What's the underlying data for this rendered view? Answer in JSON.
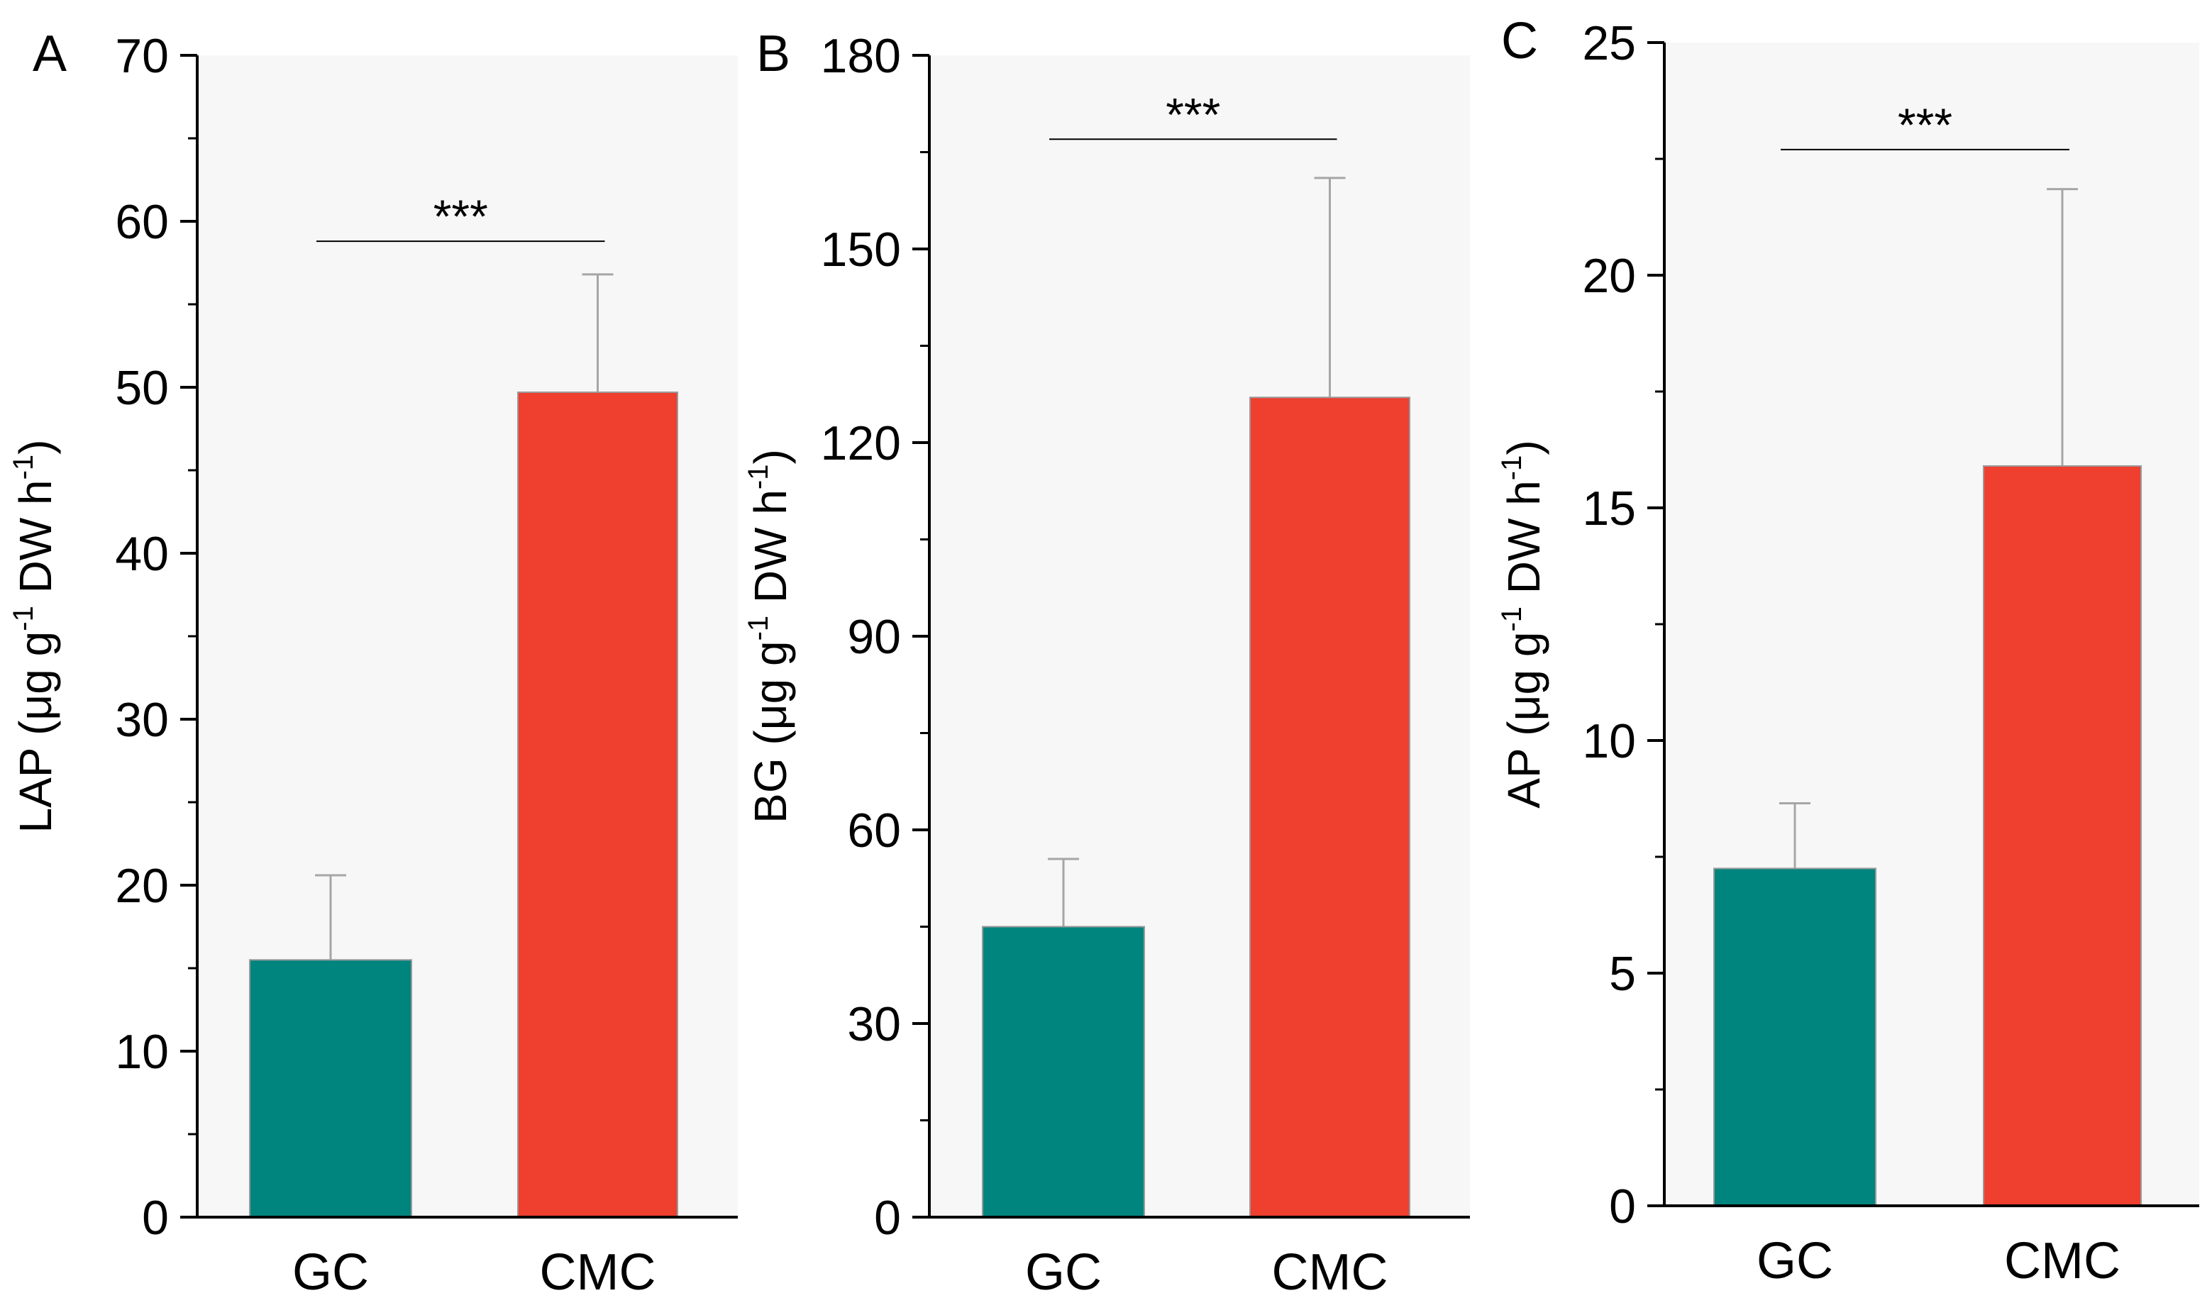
{
  "colors": {
    "plot_background": "#f7f7f7",
    "GC": "#00847e",
    "CMC": "#ee3f2f",
    "error_bar": "#a6a6a6"
  },
  "chart_data": [
    {
      "type": "bar",
      "panel_label": "A",
      "categories": [
        "GC",
        "CMC"
      ],
      "values": [
        15.5,
        49.7
      ],
      "error_upper": [
        20.6,
        56.8
      ],
      "ylabel": {
        "prefix": "LAP (μg g",
        "sup1": "-1",
        "middle": " DW h",
        "sup2": "-1",
        "suffix": ")"
      },
      "ylim": [
        0,
        70
      ],
      "yticks": [
        0,
        10,
        20,
        30,
        40,
        50,
        60,
        70
      ],
      "minor_ticks": true,
      "significance": {
        "label": "***",
        "y": 58.8
      },
      "grid": false
    },
    {
      "type": "bar",
      "panel_label": "B",
      "categories": [
        "GC",
        "CMC"
      ],
      "values": [
        45,
        127
      ],
      "error_upper": [
        55.5,
        161
      ],
      "ylabel": {
        "prefix": "BG (μg g",
        "sup1": "-1",
        "middle": " DW h",
        "sup2": "-1",
        "suffix": ")"
      },
      "ylim": [
        0,
        180
      ],
      "yticks": [
        0,
        30,
        60,
        90,
        120,
        150,
        180
      ],
      "minor_ticks": true,
      "significance": {
        "label": "***",
        "y": 167
      },
      "grid": false
    },
    {
      "type": "bar",
      "panel_label": "C",
      "categories": [
        "GC",
        "CMC"
      ],
      "values": [
        7.25,
        15.9
      ],
      "error_upper": [
        8.65,
        21.85
      ],
      "ylabel": {
        "prefix": "AP (μg g",
        "sup1": "-1",
        "middle": " DW h",
        "sup2": "-1",
        "suffix": ")"
      },
      "ylim": [
        0,
        25
      ],
      "yticks": [
        0,
        5,
        10,
        15,
        20,
        25
      ],
      "minor_ticks": true,
      "significance": {
        "label": "***",
        "y": 22.7
      },
      "grid": false
    }
  ]
}
